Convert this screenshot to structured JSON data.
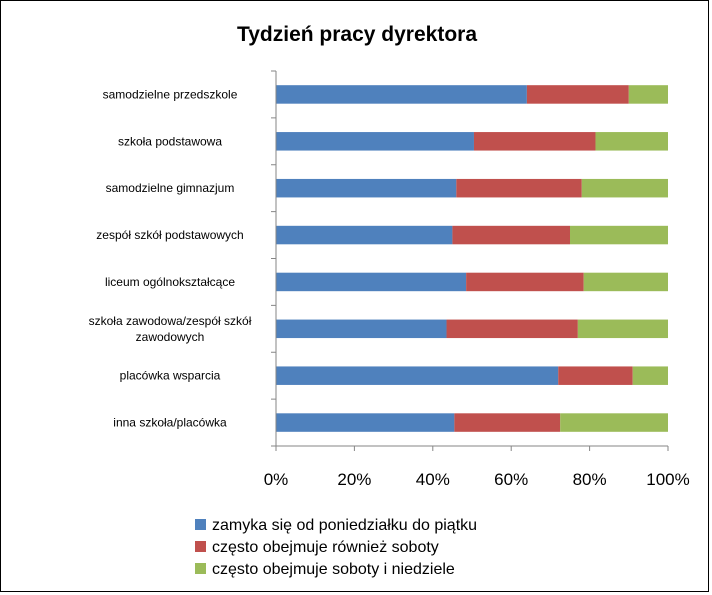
{
  "chart_data": {
    "type": "bar",
    "orientation": "horizontal",
    "stacked": "percent",
    "title": "Tydzień pracy dyrektora",
    "categories": [
      "samodzielne przedszkole",
      "szkoła podstawowa",
      "samodzielne gimnazjum",
      "zespół szkół podstawowych",
      "liceum ogólnokształcące",
      "szkoła zawodowa/zespół szkół zawodowych",
      "placówka wsparcia",
      "inna szkoła/placówka"
    ],
    "series": [
      {
        "name": "zamyka się od poniedziałku do piątku",
        "color": "#4F81BD",
        "values": [
          64,
          50.5,
          46,
          45,
          48.5,
          43.5,
          72,
          45.5
        ]
      },
      {
        "name": "często obejmuje również soboty",
        "color": "#C0504D",
        "values": [
          26,
          31,
          32,
          30,
          30,
          33.5,
          19,
          27
        ]
      },
      {
        "name": "często obejmuje soboty i niedziele",
        "color": "#9BBB59",
        "values": [
          10,
          18.5,
          22,
          25,
          21.5,
          23,
          9,
          27.5
        ]
      }
    ],
    "xlim": [
      0,
      100
    ],
    "xticks": [
      "0%",
      "20%",
      "40%",
      "60%",
      "80%",
      "100%"
    ],
    "grid": false,
    "legend_position": "bottom"
  }
}
